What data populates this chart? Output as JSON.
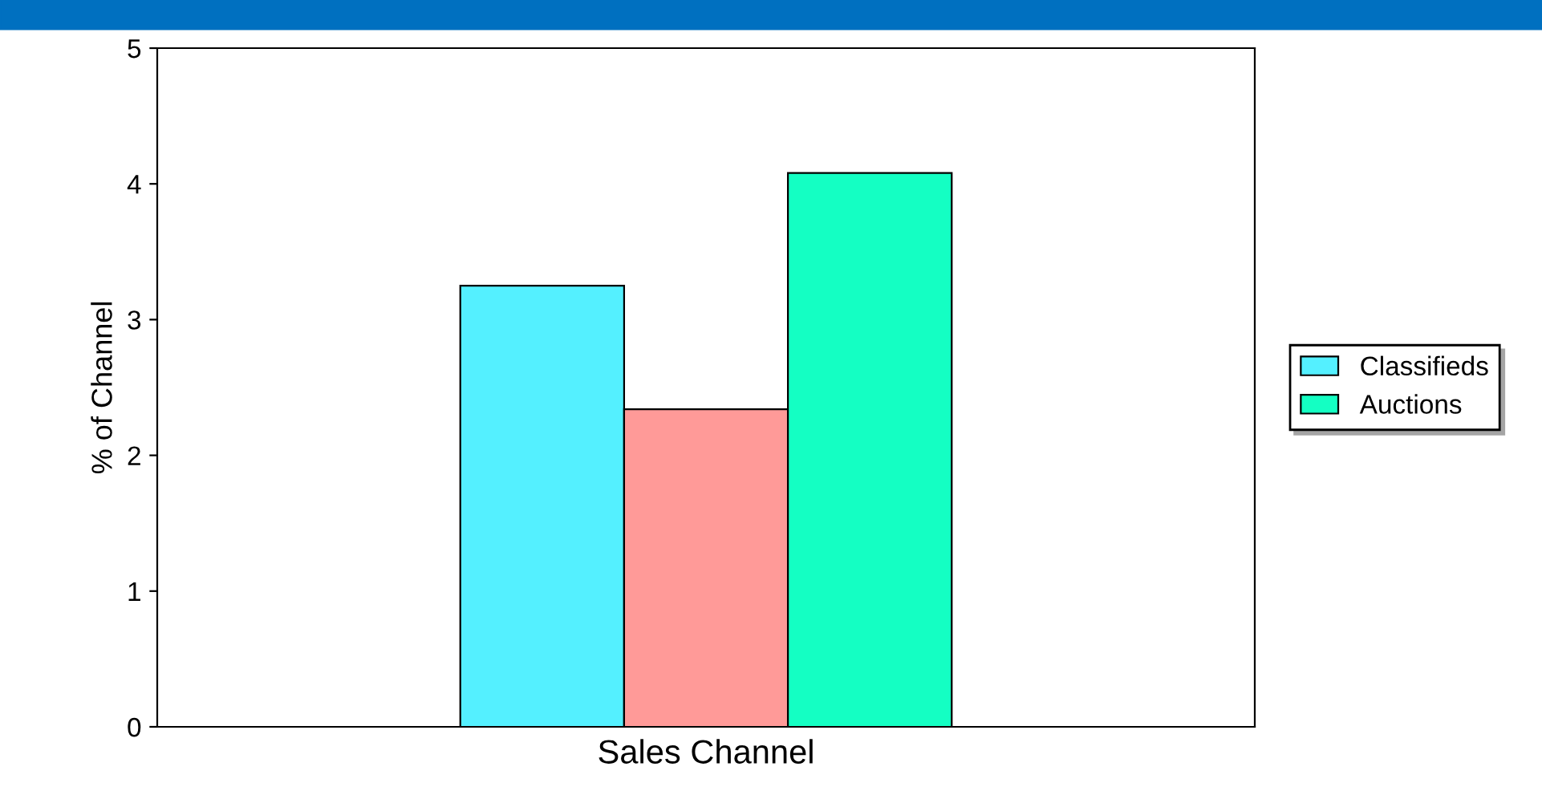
{
  "chart_data": {
    "type": "bar",
    "xlabel": "Sales Channel",
    "ylabel": "% of Channel",
    "categories": [
      null
    ],
    "series": [
      {
        "name": "Classifieds",
        "color": "#54f0ff",
        "values": [
          3.25
        ]
      },
      {
        "color": "#ff9a98",
        "values": [
          2.34
        ]
      },
      {
        "name": "Auctions",
        "color": "#14ffc3",
        "values": [
          4.08
        ]
      }
    ],
    "ylim": [
      0,
      5
    ],
    "yticks": [
      0,
      1,
      2,
      3,
      4,
      5
    ],
    "grid": false,
    "legend": "right"
  }
}
